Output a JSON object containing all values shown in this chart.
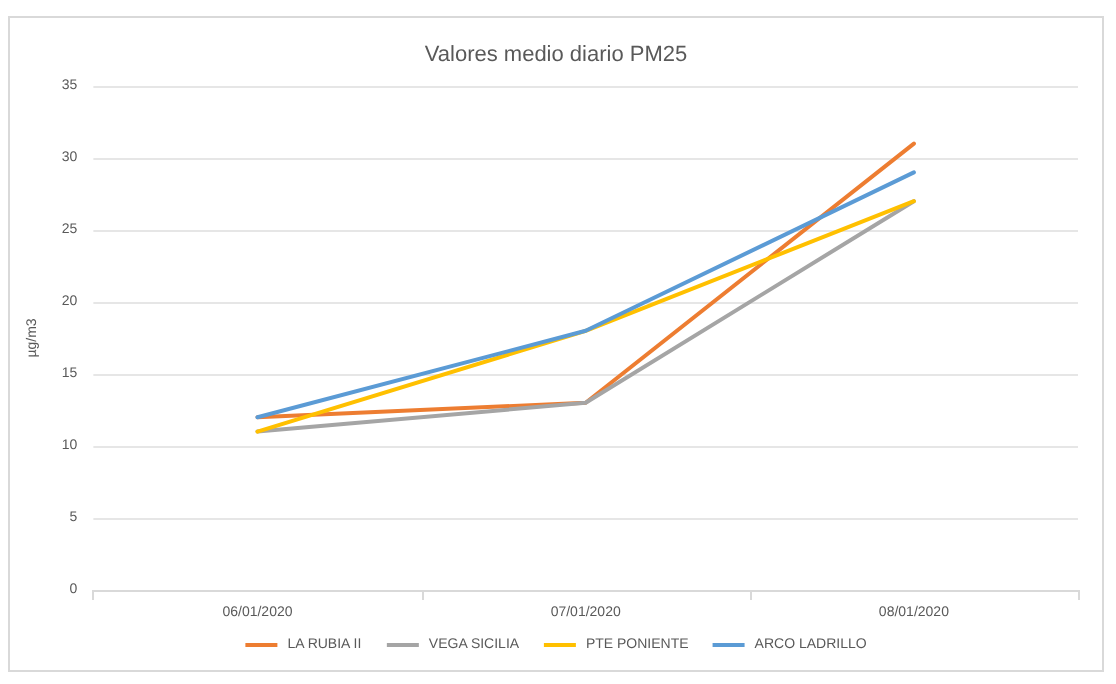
{
  "chart_data": {
    "type": "line",
    "title": "Valores medio diario PM25",
    "ylabel": "µg/m3",
    "categories": [
      "06/01/2020",
      "07/01/2020",
      "08/01/2020"
    ],
    "series": [
      {
        "name": "LA RUBIA II",
        "color": "#ed7d31",
        "values": [
          12,
          13,
          31
        ]
      },
      {
        "name": "VEGA SICILIA",
        "color": "#a5a5a5",
        "values": [
          11,
          13,
          27
        ]
      },
      {
        "name": "PTE PONIENTE",
        "color": "#ffc000",
        "values": [
          11,
          18,
          27
        ]
      },
      {
        "name": "ARCO LADRILLO",
        "color": "#5b9bd5",
        "values": [
          12,
          18,
          29
        ]
      }
    ],
    "ylim": [
      0,
      35
    ],
    "yticks": [
      0,
      5,
      10,
      15,
      20,
      25,
      30,
      35
    ],
    "grid": "y",
    "legend": "bottom",
    "marker": "none",
    "line_style": "solid"
  }
}
